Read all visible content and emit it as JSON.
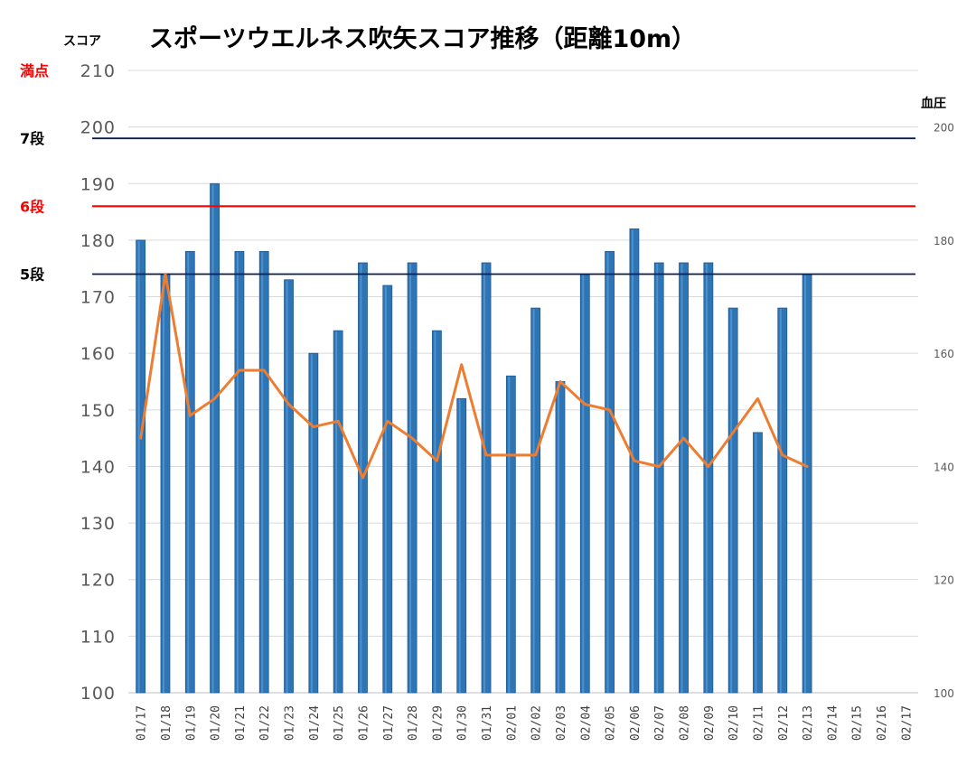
{
  "chart_data": {
    "type": "bar",
    "title": "スポーツウエルネス吹矢スコア推移（距離10m）",
    "ylabel_left": "スコア",
    "ylabel_right": "血圧",
    "ylim_left": [
      100,
      210
    ],
    "yticks_left": [
      "100",
      "110",
      "120",
      "130",
      "140",
      "150",
      "160",
      "170",
      "180",
      "190",
      "200",
      "210"
    ],
    "ylim_right": [
      100,
      210
    ],
    "yticks_right": [
      "100",
      "120",
      "140",
      "160",
      "180",
      "200"
    ],
    "grid": true,
    "categories": [
      "01/17",
      "01/18",
      "01/19",
      "01/20",
      "01/21",
      "01/22",
      "01/23",
      "01/24",
      "01/25",
      "01/26",
      "01/27",
      "01/28",
      "01/29",
      "01/30",
      "01/31",
      "02/01",
      "02/02",
      "02/03",
      "02/04",
      "02/05",
      "02/06",
      "02/07",
      "02/08",
      "02/09",
      "02/10",
      "02/11",
      "02/12",
      "02/13",
      "02/14",
      "02/15",
      "02/16",
      "02/17"
    ],
    "series": [
      {
        "type": "bar",
        "axis": "left",
        "color": "#2e75b6",
        "values": [
          180,
          174,
          178,
          190,
          178,
          178,
          173,
          160,
          164,
          176,
          172,
          176,
          164,
          152,
          176,
          156,
          168,
          155,
          174,
          178,
          182,
          176,
          176,
          176,
          168,
          146,
          168,
          174,
          null,
          null,
          null,
          null
        ]
      },
      {
        "type": "line",
        "axis": "right",
        "color": "#ed7d31",
        "values": [
          145,
          174,
          149,
          152,
          157,
          157,
          151,
          147,
          148,
          138,
          148,
          145,
          141,
          158,
          142,
          142,
          142,
          155,
          151,
          150,
          141,
          140,
          145,
          140,
          146,
          152,
          142,
          140,
          null,
          null,
          null,
          null
        ]
      }
    ],
    "reference_lines": [
      {
        "label": "満点",
        "value": 210,
        "color": "#ff0000",
        "show_line": false
      },
      {
        "label": "7段",
        "value": 198,
        "color": "#0d1b4f",
        "label_color": "#000000",
        "show_line": true
      },
      {
        "label": "6段",
        "value": 186,
        "color": "#ff0000",
        "label_color": "#ff0000",
        "show_line": true
      },
      {
        "label": "5段",
        "value": 174,
        "color": "#0d1b4f",
        "label_color": "#000000",
        "show_line": true
      }
    ]
  }
}
